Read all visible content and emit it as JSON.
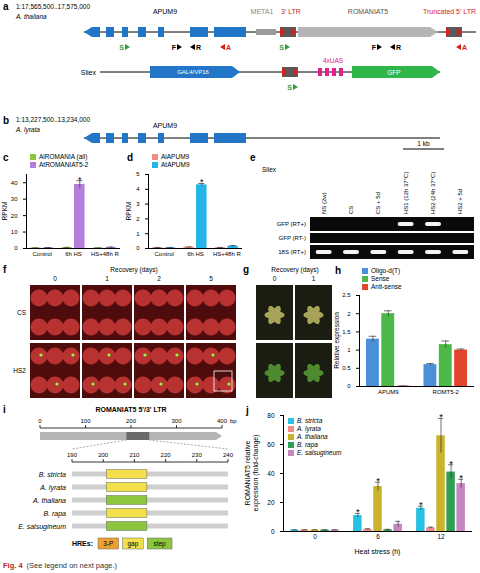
{
  "figure": {
    "label": "Fig. 4",
    "caption": "(See legend on next page.)"
  },
  "panels": {
    "a": {
      "label": "a",
      "coordinates": "1:17,565,500..17,575,000",
      "species": "A. thaliana",
      "labels": {
        "gene": "APUM9",
        "meta": "META1",
        "ltr3": "3' LTR",
        "te": "ROMANIAT5",
        "ltr5": "Truncated 5' LTR"
      },
      "primers": [
        {
          "label": "S",
          "color": "#2e9d3a",
          "direction": "forward"
        },
        {
          "label": "F",
          "color": "#000000",
          "direction": "forward"
        },
        {
          "label": "R",
          "color": "#000000",
          "direction": "reverse"
        },
        {
          "label": "A",
          "color": "#d62020",
          "direction": "reverse"
        },
        {
          "label": "S",
          "color": "#2e9d3a",
          "direction": "forward"
        },
        {
          "label": "F",
          "color": "#000000",
          "direction": "forward"
        },
        {
          "label": "R",
          "color": "#000000",
          "direction": "reverse"
        },
        {
          "label": "A",
          "color": "#d62020",
          "direction": "reverse"
        }
      ],
      "transgene": {
        "name": "Silex",
        "driver": "GAL4/VP16",
        "uas": "4xUAS",
        "reporter": "GFP",
        "primers": [
          {
            "label": "S",
            "color": "#2e9d3a",
            "direction": "forward"
          }
        ]
      }
    },
    "b": {
      "label": "b",
      "coordinates": "1:13,227,500..13,234,000",
      "species": "A. lyrata",
      "gene": "APUM9",
      "scale": "1 kb"
    },
    "e": {
      "label": "e",
      "title": "Silex",
      "columns": [
        "NS (2w)",
        "CS",
        "CS + 5d",
        "HS1 (12h 37°C)",
        "HS2 (24h 37°C)",
        "HS2 + 5d"
      ],
      "rows": [
        {
          "label": "GFP (RT+)",
          "bands": [
            0,
            0,
            0,
            1,
            1,
            0
          ]
        },
        {
          "label": "GFP (RT-)",
          "bands": [
            0,
            0,
            0,
            0,
            0,
            0
          ]
        },
        {
          "label": "18S (RT+)",
          "bands": [
            1,
            1,
            1,
            1,
            1,
            1
          ]
        }
      ]
    },
    "f": {
      "label": "f",
      "title": "Recovery (days)",
      "columns": [
        "0",
        "1",
        "2",
        "5"
      ],
      "rows": [
        "CS",
        "HS2"
      ]
    },
    "g": {
      "label": "g",
      "title": "Recovery (days)",
      "columns": [
        "0",
        "1"
      ]
    },
    "i": {
      "label": "i",
      "title": "ROMANIAT5 5'/3' LTR",
      "unit": "bp",
      "xlim": [
        0,
        400
      ],
      "xticks": [
        0,
        100,
        200,
        300,
        400
      ],
      "zoom_xlim": [
        190,
        240
      ],
      "zoom_xticks": [
        190,
        200,
        210,
        220,
        230,
        240
      ],
      "species": [
        {
          "name": "B. stricta",
          "hre": "gap",
          "start": 201,
          "end": 214
        },
        {
          "name": "A. lyrata",
          "hre": "gap",
          "start": 201,
          "end": 214
        },
        {
          "name": "A. thaliana",
          "hre": "step",
          "start": 201,
          "end": 214
        },
        {
          "name": "B. rapa",
          "hre": "gap",
          "start": 201,
          "end": 214
        },
        {
          "name": "E. salsugineum",
          "hre": "step",
          "start": 201,
          "end": 214
        }
      ],
      "legend_title": "HREs:",
      "hre_types": [
        {
          "name": "3-P",
          "color": "#f0a030"
        },
        {
          "name": "gap",
          "color": "#f3df4a"
        },
        {
          "name": "step",
          "color": "#8cc63f"
        }
      ]
    }
  },
  "chart_data": [
    {
      "panel": "c",
      "type": "bar",
      "categories": [
        "Control",
        "6h HS",
        "HS+48h R"
      ],
      "ylabel": "RPKM",
      "ylim": [
        0,
        45
      ],
      "yticks": [
        0,
        10,
        20,
        30,
        40
      ],
      "legend": "top",
      "series": [
        {
          "name": "AlROMANIA (all)",
          "color": "#8cc63f",
          "values": [
            0.3,
            0.5,
            0.3
          ],
          "errors": [
            0.1,
            0.2,
            0.1
          ]
        },
        {
          "name": "AtROMANIAT5-2",
          "color": "#b57edc",
          "values": [
            0.4,
            39,
            0.6
          ],
          "errors": [
            0.2,
            2.2,
            0.3
          ]
        }
      ],
      "annotations": [
        {
          "category": "6h HS",
          "series": "AtROMANIAT5-2",
          "text": "*"
        }
      ]
    },
    {
      "panel": "d",
      "type": "bar",
      "categories": [
        "Control",
        "6h HS",
        "HS+48h R"
      ],
      "ylabel": "RPKM",
      "ylim": [
        0,
        5
      ],
      "yticks": [
        0,
        1,
        2,
        3,
        4,
        5
      ],
      "legend": "top",
      "series": [
        {
          "name": "AlAPUM9",
          "color": "#f28b82",
          "values": [
            0.05,
            0.08,
            0.05
          ],
          "errors": [
            0.02,
            0.03,
            0.02
          ]
        },
        {
          "name": "AtAPUM9",
          "color": "#26b5e8",
          "values": [
            0.05,
            4.3,
            0.15
          ],
          "errors": [
            0.02,
            0.1,
            0.05
          ]
        }
      ],
      "annotations": [
        {
          "category": "6h HS",
          "series": "AtAPUM9",
          "text": "*"
        }
      ]
    },
    {
      "panel": "h",
      "type": "bar",
      "categories": [
        "APUM9",
        "ROMT5-2"
      ],
      "ylabel": "Relative expression",
      "ylim": [
        0,
        2.5
      ],
      "yticks": [
        0,
        0.5,
        1,
        1.5,
        2,
        2.5
      ],
      "legend": "top",
      "series": [
        {
          "name": "Oligo-d(T)",
          "color": "#4a8fd8",
          "values": [
            1.3,
            0.6
          ],
          "errors": [
            0.08,
            0.03
          ]
        },
        {
          "name": "Sense",
          "color": "#4cb848",
          "values": [
            2.0,
            1.15
          ],
          "errors": [
            0.08,
            0.1
          ]
        },
        {
          "name": "Anti-sense",
          "color": "#e2452f",
          "values": [
            0.01,
            1.0
          ],
          "errors": [
            0.005,
            0.03
          ]
        }
      ]
    },
    {
      "panel": "j",
      "type": "bar",
      "categories": [
        "0",
        "6",
        "12"
      ],
      "xlabel": "Heat stress (h)",
      "ylabel": "ROMANIAT5 relative expression (fold-change)",
      "ylim": [
        0,
        80
      ],
      "yticks": [
        0,
        20,
        40,
        60,
        80
      ],
      "legend": "top-left",
      "series": [
        {
          "name": "B. stricta",
          "color": "#29c1e3",
          "values": [
            1,
            11,
            16
          ],
          "errors": [
            0.2,
            1.5,
            1.5
          ]
        },
        {
          "name": "A. lyrata",
          "color": "#f08a8a",
          "values": [
            1,
            1.5,
            2.5
          ],
          "errors": [
            0.2,
            0.4,
            0.5
          ]
        },
        {
          "name": "A. thaliana",
          "color": "#c9b32b",
          "values": [
            1,
            31,
            66
          ],
          "errors": [
            0.2,
            3,
            12
          ]
        },
        {
          "name": "B. rapa",
          "color": "#2f9e55",
          "values": [
            1,
            1.2,
            41
          ],
          "errors": [
            0.2,
            0.3,
            5
          ]
        },
        {
          "name": "E. salsugineum",
          "color": "#c586c0",
          "values": [
            1,
            5,
            33
          ],
          "errors": [
            0.2,
            2,
            3
          ]
        }
      ],
      "annotations": [
        {
          "category": "6",
          "series": "B. stricta",
          "text": "*"
        },
        {
          "category": "6",
          "series": "A. thaliana",
          "text": "*"
        },
        {
          "category": "12",
          "series": "B. stricta",
          "text": "*"
        },
        {
          "category": "12",
          "series": "A. thaliana",
          "text": "*"
        },
        {
          "category": "12",
          "series": "B. rapa",
          "text": "*"
        },
        {
          "category": "12",
          "series": "E. salsugineum",
          "text": "*"
        }
      ]
    }
  ]
}
